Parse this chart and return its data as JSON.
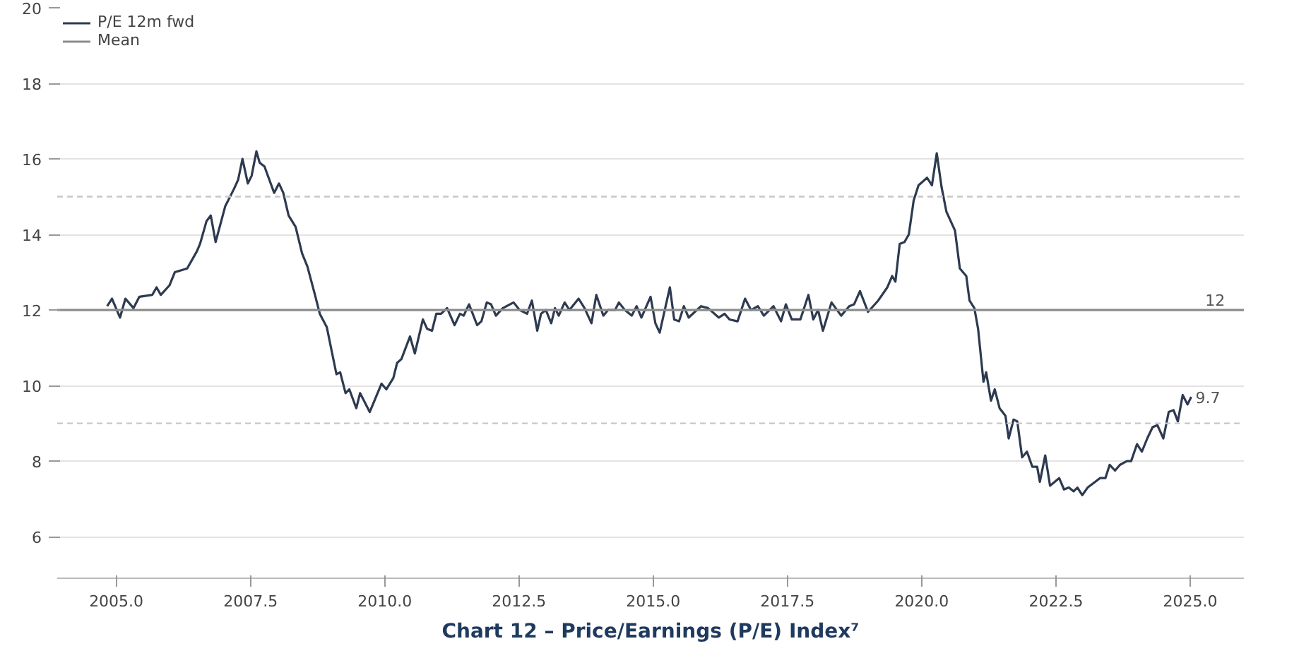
{
  "chart_data": {
    "type": "line",
    "title": "Chart 12 – Price/Earnings (P/E) Index⁷",
    "xlim": [
      2003.9,
      2026
    ],
    "ylim": [
      4.9,
      20
    ],
    "xticks": [
      {
        "value": 2005,
        "label": "2005.0"
      },
      {
        "value": 2007.5,
        "label": "2007.5"
      },
      {
        "value": 2010,
        "label": "2010.0"
      },
      {
        "value": 2012.5,
        "label": "2012.5"
      },
      {
        "value": 2015,
        "label": "2015.0"
      },
      {
        "value": 2017.5,
        "label": "2017.5"
      },
      {
        "value": 2020,
        "label": "2020.0"
      },
      {
        "value": 2022.5,
        "label": "2022.5"
      },
      {
        "value": 2025,
        "label": "2025.0"
      }
    ],
    "yticks": [
      6,
      8,
      10,
      12,
      14,
      16,
      18,
      20
    ],
    "grid": "y",
    "legend": "top left",
    "series": [
      {
        "name": "P/E 12m fwd",
        "color": "#2d3a50",
        "x": [
          2004.83,
          2004.92,
          2005.07,
          2005.17,
          2005.32,
          2005.43,
          2005.67,
          2005.75,
          2005.83,
          2005.99,
          2006.09,
          2006.32,
          2006.5,
          2006.56,
          2006.68,
          2006.76,
          2006.85,
          2007.03,
          2007.19,
          2007.27,
          2007.35,
          2007.45,
          2007.52,
          2007.61,
          2007.67,
          2007.76,
          2007.94,
          2008.03,
          2008.11,
          2008.21,
          2008.34,
          2008.46,
          2008.56,
          2008.7,
          2008.79,
          2008.92,
          2009.1,
          2009.17,
          2009.27,
          2009.34,
          2009.47,
          2009.54,
          2009.72,
          2009.94,
          2010.03,
          2010.16,
          2010.23,
          2010.31,
          2010.47,
          2010.56,
          2010.71,
          2010.79,
          2010.88,
          2010.96,
          2011.05,
          2011.16,
          2011.3,
          2011.4,
          2011.47,
          2011.57,
          2011.72,
          2011.8,
          2011.9,
          2011.98,
          2012.07,
          2012.2,
          2012.4,
          2012.51,
          2012.65,
          2012.74,
          2012.84,
          2012.91,
          2013.0,
          2013.1,
          2013.17,
          2013.24,
          2013.35,
          2013.44,
          2013.61,
          2013.72,
          2013.85,
          2013.94,
          2014.07,
          2014.16,
          2014.29,
          2014.36,
          2014.47,
          2014.6,
          2014.69,
          2014.78,
          2014.95,
          2015.04,
          2015.12,
          2015.31,
          2015.39,
          2015.48,
          2015.57,
          2015.66,
          2015.89,
          2016.02,
          2016.22,
          2016.33,
          2016.42,
          2016.57,
          2016.71,
          2016.82,
          2016.95,
          2017.06,
          2017.24,
          2017.38,
          2017.47,
          2017.58,
          2017.74,
          2017.89,
          2017.98,
          2018.07,
          2018.16,
          2018.32,
          2018.5,
          2018.65,
          2018.74,
          2018.85,
          2019.0,
          2019.19,
          2019.36,
          2019.45,
          2019.51,
          2019.59,
          2019.68,
          2019.76,
          2019.85,
          2019.94,
          2020.1,
          2020.19,
          2020.28,
          2020.37,
          2020.46,
          2020.62,
          2020.71,
          2020.83,
          2020.89,
          2020.98,
          2021.05,
          2021.15,
          2021.2,
          2021.29,
          2021.36,
          2021.45,
          2021.56,
          2021.62,
          2021.71,
          2021.78,
          2021.87,
          2021.96,
          2022.06,
          2022.15,
          2022.2,
          2022.3,
          2022.39,
          2022.56,
          2022.65,
          2022.74,
          2022.83,
          2022.9,
          2022.99,
          2023.09,
          2023.23,
          2023.32,
          2023.42,
          2023.5,
          2023.6,
          2023.69,
          2023.82,
          2023.9,
          2024.01,
          2024.1,
          2024.2,
          2024.3,
          2024.39,
          2024.5,
          2024.6,
          2024.69,
          2024.77,
          2024.86,
          2024.95,
          2025.02
        ],
        "values": [
          12.1,
          12.3,
          11.8,
          12.3,
          12.05,
          12.35,
          12.4,
          12.6,
          12.4,
          12.65,
          13.0,
          13.1,
          13.55,
          13.75,
          14.35,
          14.5,
          13.8,
          14.75,
          15.2,
          15.45,
          16.0,
          15.35,
          15.55,
          16.2,
          15.9,
          15.8,
          15.1,
          15.35,
          15.1,
          14.5,
          14.2,
          13.5,
          13.15,
          12.4,
          11.9,
          11.55,
          10.3,
          10.35,
          9.8,
          9.9,
          9.4,
          9.8,
          9.3,
          10.05,
          9.9,
          10.2,
          10.6,
          10.7,
          11.3,
          10.85,
          11.75,
          11.5,
          11.45,
          11.9,
          11.9,
          12.05,
          11.6,
          11.9,
          11.85,
          12.15,
          11.6,
          11.7,
          12.2,
          12.15,
          11.85,
          12.05,
          12.2,
          12.0,
          11.9,
          12.25,
          11.45,
          11.9,
          12.0,
          11.65,
          12.05,
          11.85,
          12.2,
          12.0,
          12.3,
          12.05,
          11.65,
          12.4,
          11.85,
          12.0,
          12.0,
          12.2,
          12.0,
          11.85,
          12.1,
          11.8,
          12.35,
          11.65,
          11.4,
          12.6,
          11.75,
          11.7,
          12.1,
          11.8,
          12.1,
          12.05,
          11.8,
          11.9,
          11.75,
          11.7,
          12.3,
          12.0,
          12.1,
          11.85,
          12.1,
          11.7,
          12.15,
          11.75,
          11.75,
          12.4,
          11.75,
          12.0,
          11.45,
          12.2,
          11.85,
          12.1,
          12.15,
          12.5,
          11.95,
          12.25,
          12.6,
          12.9,
          12.75,
          13.75,
          13.8,
          14.0,
          14.9,
          15.3,
          15.5,
          15.3,
          16.15,
          15.25,
          14.6,
          14.1,
          13.1,
          12.9,
          12.25,
          12.05,
          11.5,
          10.1,
          10.35,
          9.6,
          9.9,
          9.4,
          9.2,
          8.6,
          9.1,
          9.05,
          8.1,
          8.25,
          7.85,
          7.85,
          7.45,
          8.15,
          7.35,
          7.55,
          7.25,
          7.3,
          7.2,
          7.3,
          7.1,
          7.3,
          7.45,
          7.55,
          7.55,
          7.9,
          7.75,
          7.9,
          8.0,
          8.0,
          8.45,
          8.25,
          8.6,
          8.9,
          8.95,
          8.6,
          9.3,
          9.35,
          9.05,
          9.75,
          9.5,
          9.7
        ]
      },
      {
        "name": "Mean",
        "color": "#8c8c8c",
        "x": [
          2003.9,
          2026
        ],
        "values": [
          12,
          12
        ]
      }
    ],
    "ref_lines": [
      {
        "axis": "y",
        "value": 15,
        "color": "#c8c8c8",
        "line_style": "dashed"
      },
      {
        "axis": "y",
        "value": 9,
        "color": "#c8c8c8",
        "line_style": "dashed"
      }
    ],
    "annotations": [
      {
        "text": "12",
        "x": 2025.2,
        "y": 12
      },
      {
        "text": "9.7",
        "x": 2025.02,
        "y": 9.7
      }
    ]
  }
}
